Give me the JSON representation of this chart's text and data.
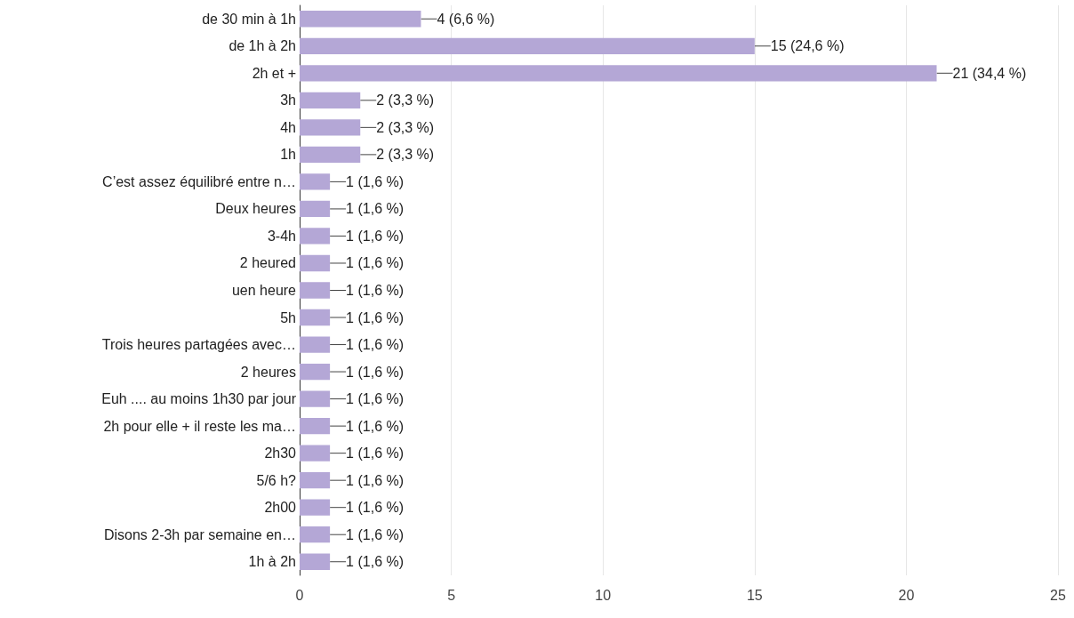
{
  "chart_data": {
    "type": "bar",
    "orientation": "horizontal",
    "categories": [
      "de 30 min à 1h",
      "de 1h à 2h",
      "2h et +",
      "3h",
      "4h",
      "1h",
      "C’est assez équilibré entre n…",
      "Deux heures",
      "3-4h",
      "2 heured",
      "uen heure",
      "5h",
      "Trois heures partagées avec…",
      "2 heures",
      "Euh .... au moins 1h30 par jour",
      "2h pour elle + il reste les ma…",
      "2h30",
      "5/6 h?",
      "2h00",
      "Disons 2-3h par semaine en…",
      "1h à 2h"
    ],
    "values": [
      4,
      15,
      21,
      2,
      2,
      2,
      1,
      1,
      1,
      1,
      1,
      1,
      1,
      1,
      1,
      1,
      1,
      1,
      1,
      1,
      1
    ],
    "value_labels": [
      "4 (6,6 %)",
      "15 (24,6 %)",
      "21 (34,4 %)",
      "2 (3,3 %)",
      "2 (3,3 %)",
      "2 (3,3 %)",
      "1 (1,6 %)",
      "1 (1,6 %)",
      "1 (1,6 %)",
      "1 (1,6 %)",
      "1 (1,6 %)",
      "1 (1,6 %)",
      "1 (1,6 %)",
      "1 (1,6 %)",
      "1 (1,6 %)",
      "1 (1,6 %)",
      "1 (1,6 %)",
      "1 (1,6 %)",
      "1 (1,6 %)",
      "1 (1,6 %)",
      "1 (1,6 %)"
    ],
    "color": "#b4a7d6",
    "xlim": [
      0,
      25
    ],
    "xticks": [
      0,
      5,
      10,
      15,
      20,
      25
    ],
    "grid": "x"
  }
}
